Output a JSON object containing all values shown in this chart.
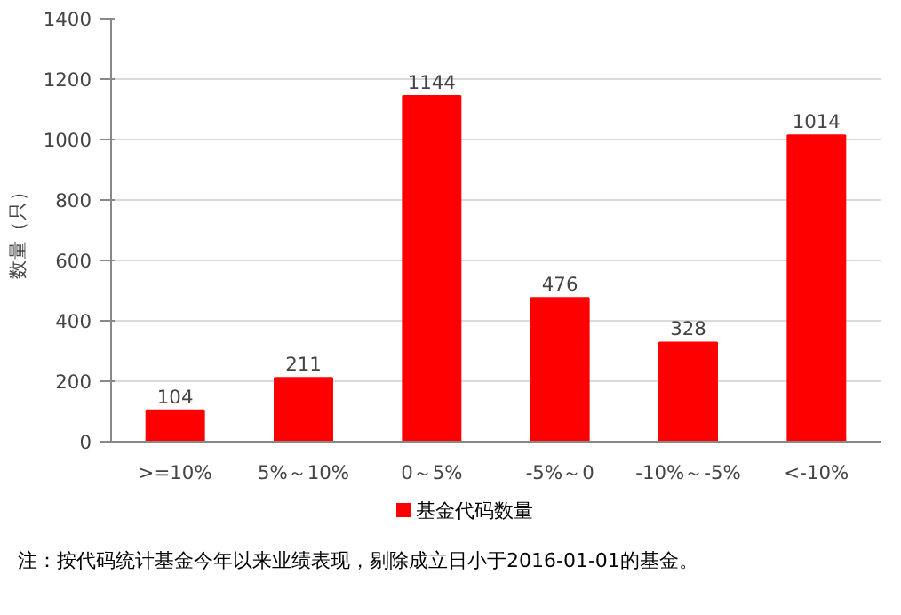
{
  "chart_data": {
    "type": "bar",
    "ylabel": "数量（只）",
    "categories": [
      ">=10%",
      "5%～10%",
      "0～5%",
      "-5%～0",
      "-10%～-5%",
      "<-10%"
    ],
    "series": [
      {
        "name": "基金代码数量",
        "color": "#ff0000",
        "values": [
          104,
          211,
          1144,
          476,
          328,
          1014
        ]
      }
    ],
    "ylim": [
      0,
      1400
    ],
    "yticks": [
      0,
      200,
      400,
      600,
      800,
      1000,
      1200,
      1400
    ],
    "grid": "y",
    "legend": "bottom",
    "data_labels": true,
    "annotations": [
      "注：按代码统计基金今年以来业绩表现，剔除成立日小于2016-01-01的基金。"
    ]
  }
}
